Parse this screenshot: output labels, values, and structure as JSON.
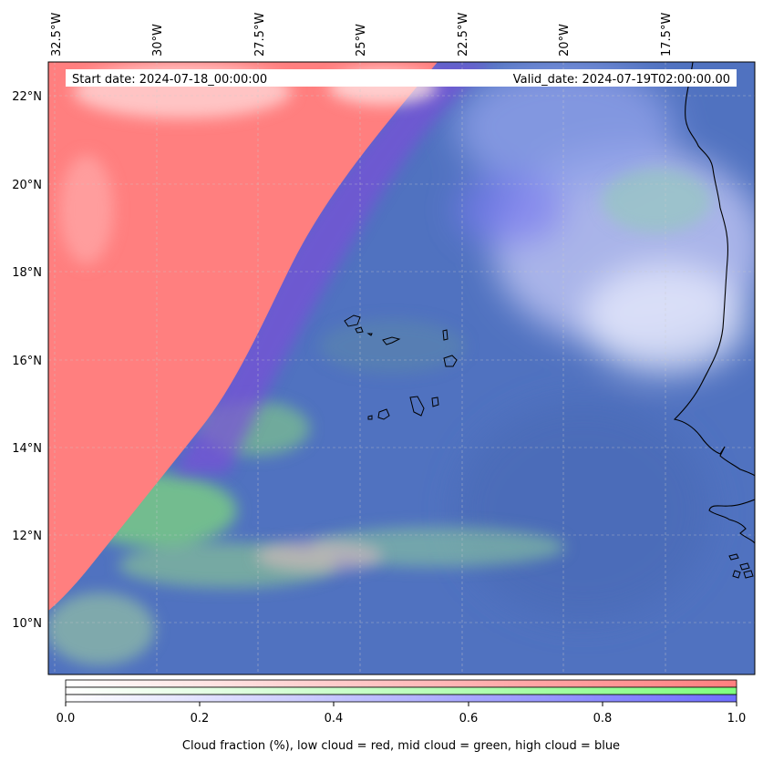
{
  "map": {
    "start_date_text": "Start date: 2024-07-18_00:00:00",
    "valid_date_text": "Valid_date: 2024-07-19T02:00:00.00",
    "lon_labels": [
      "32.5°W",
      "30°W",
      "27.5°W",
      "25°W",
      "22.5°W",
      "20°W",
      "17.5°W"
    ],
    "lat_labels": [
      "22°N",
      "20°N",
      "18°N",
      "16°N",
      "14°N",
      "12°N",
      "10°N"
    ],
    "colors": {
      "low_cloud": "#ff7f7f",
      "mid_cloud": "#7fff7f",
      "high_cloud": "#6e6eff",
      "ocean_base": "#4f6fbf"
    }
  },
  "colorbar": {
    "ticks": [
      "0.0",
      "0.2",
      "0.4",
      "0.6",
      "0.8",
      "1.0"
    ],
    "label": "Cloud fraction (%), low cloud = red, mid cloud = green, high cloud = blue"
  }
}
